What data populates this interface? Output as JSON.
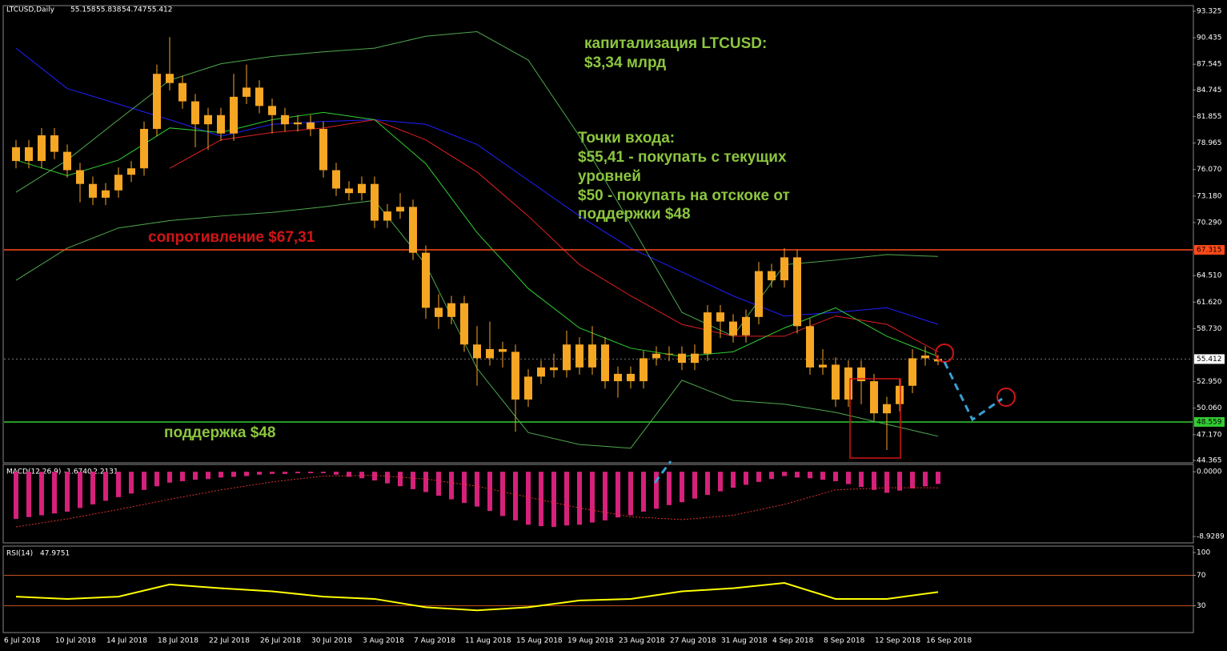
{
  "chart_data": [
    {
      "type": "candlestick",
      "symbol": "LTCUSD,Daily",
      "categories": [
        "6 Jul 2018",
        null,
        null,
        null,
        "10 Jul 2018",
        null,
        null,
        null,
        "14 Jul 2018",
        null,
        null,
        null,
        "18 Jul 2018",
        null,
        null,
        null,
        "22 Jul 2018",
        null,
        null,
        null,
        "26 Jul 2018",
        null,
        null,
        null,
        "30 Jul 2018",
        null,
        null,
        null,
        "3 Aug 2018",
        null,
        null,
        null,
        "7 Aug 2018",
        null,
        null,
        null,
        "11 Aug 2018",
        null,
        null,
        null,
        "15 Aug 2018",
        null,
        null,
        null,
        "19 Aug 2018",
        null,
        null,
        null,
        "23 Aug 2018",
        null,
        null,
        null,
        "27 Aug 2018",
        null,
        null,
        null,
        "31 Aug 2018",
        null,
        null,
        null,
        "4 Sep 2018",
        null,
        null,
        null,
        "8 Sep 2018",
        null,
        null,
        null,
        "12 Sep 2018",
        null,
        null,
        null,
        "16 Sep 2018"
      ],
      "open": [
        77,
        78.5,
        77,
        79.8,
        78,
        76,
        74.5,
        73,
        73.8,
        75.5,
        76.2,
        80.5,
        86.5,
        85.5,
        83.5,
        81,
        82,
        80,
        84,
        85,
        83,
        82,
        81,
        81.2,
        80.5,
        76,
        74,
        73.5,
        74.5,
        70.5,
        71.5,
        72,
        67,
        61,
        60,
        61.5,
        57,
        55.5,
        56.5,
        56.2,
        51,
        53.5,
        54.5,
        54.2,
        57,
        54.5,
        57,
        53,
        53.8,
        53,
        55.5,
        56,
        56,
        55,
        56,
        60.5,
        59.5,
        58,
        60,
        65,
        64,
        66.5,
        59,
        54.5,
        54.8,
        51,
        54.5,
        53,
        49.5,
        50.5,
        52.5,
        55.5,
        55.158
      ],
      "high": [
        79.3,
        79.3,
        80.6,
        80.6,
        78.8,
        76.8,
        75.3,
        74.6,
        76.3,
        77.0,
        81.3,
        87.5,
        90.5,
        86.3,
        84.3,
        82.8,
        82.8,
        86.5,
        87.5,
        85.8,
        83.8,
        82.8,
        82.0,
        82.0,
        81.3,
        76.8,
        74.8,
        75.3,
        75.3,
        72.3,
        73.5,
        72.8,
        67.8,
        62.5,
        62.3,
        62.3,
        59.0,
        59.5,
        57.3,
        57.0,
        54.3,
        55.3,
        56.0,
        58.5,
        57.8,
        59.0,
        57.8,
        54.6,
        54.6,
        56.3,
        56.8,
        56.8,
        56.8,
        57.0,
        61.3,
        61.3,
        60.3,
        60.8,
        66.0,
        65.8,
        67.5,
        67.3,
        59.8,
        56.5,
        55.6,
        55.3,
        55.3,
        53.8,
        51.3,
        53.3,
        56.5,
        56.8,
        55.838
      ],
      "low": [
        76.2,
        76.2,
        76.2,
        77.2,
        75.2,
        72.5,
        72.2,
        72.2,
        73.0,
        74.7,
        75.4,
        79.7,
        84.7,
        82.7,
        78.5,
        78.2,
        79.2,
        79.2,
        83.2,
        82.2,
        80.0,
        80.2,
        80.2,
        79.7,
        75.2,
        73.2,
        72.7,
        72.7,
        69.7,
        69.7,
        70.7,
        66.2,
        59.8,
        58.7,
        59.2,
        56.2,
        52.5,
        54.7,
        54.5,
        47.5,
        50.2,
        52.7,
        53.4,
        53.4,
        53.7,
        53.7,
        52.2,
        51.2,
        52.2,
        52.2,
        54.7,
        55.2,
        54.2,
        54.2,
        55.2,
        57.7,
        57.2,
        57.2,
        59.2,
        63.2,
        63.2,
        58.2,
        53.7,
        53.7,
        50.2,
        50.2,
        50.5,
        48.7,
        45.5,
        49.7,
        51.7,
        54.7,
        54.747
      ],
      "close": [
        78.5,
        77,
        79.8,
        78,
        76,
        74.5,
        73,
        73.8,
        75.5,
        76.2,
        80.5,
        86.5,
        85.5,
        83.5,
        81,
        82,
        80,
        84,
        85,
        83,
        82,
        81,
        81.2,
        80.5,
        76,
        74,
        73.5,
        74.5,
        70.5,
        71.5,
        72,
        67,
        61,
        60,
        61.5,
        57,
        55.5,
        56.5,
        56.2,
        51,
        53.5,
        54.5,
        54.2,
        57,
        54.5,
        57,
        53,
        53.8,
        53,
        55.5,
        56,
        56,
        55,
        56,
        60.5,
        59.5,
        58,
        60,
        65,
        64,
        66.5,
        59,
        54.5,
        54.8,
        51,
        54.5,
        53,
        49.5,
        50.5,
        52.5,
        55.5,
        55.8,
        55.412
      ],
      "color": "#f5a623",
      "ylim": [
        44.19,
        93.85
      ],
      "yticks": [
        93.325,
        90.435,
        87.545,
        84.745,
        81.855,
        78.965,
        {
          "value": 76.07,
          "label": "76.070"
        },
        {
          "value": 73.18,
          "label": "73.180"
        },
        {
          "value": 70.29,
          "label": "70.290"
        },
        {
          "value": 64.51,
          "label": "64.510"
        },
        {
          "value": 61.62,
          "label": "61.620"
        },
        {
          "value": 58.73,
          "label": "58.730"
        },
        {
          "value": 52.95,
          "label": "52.950"
        },
        {
          "value": 50.06,
          "label": "50.060"
        },
        {
          "value": 47.17,
          "label": "47.170"
        },
        44.365
      ],
      "hlines": [
        {
          "value": 67.315,
          "color": "#ff4a1a"
        },
        {
          "value": 48.559,
          "color": "#33cc33"
        }
      ],
      "overlays": [
        {
          "color": "#2020ff",
          "x": [
            "6 Jul 2018",
            "10 Jul 2018",
            "14 Jul 2018",
            "18 Jul 2018",
            "22 Jul 2018",
            "26 Jul 2018",
            "30 Jul 2018",
            "3 Aug 2018",
            "7 Aug 2018",
            "11 Aug 2018",
            "15 Aug 2018",
            "19 Aug 2018",
            "23 Aug 2018",
            "27 Aug 2018",
            "31 Aug 2018",
            "4 Sep 2018",
            "8 Sep 2018",
            "12 Sep 2018",
            "16 Sep 2018"
          ],
          "values": [
            89.3,
            84.9,
            83.2,
            81.5,
            79.7,
            81.0,
            81.3,
            81.5,
            81.0,
            78.8,
            74.9,
            71.0,
            67.5,
            64.9,
            62.3,
            60.1,
            60.5,
            61.0,
            59.2
          ]
        },
        {
          "color": "#e02020",
          "x": [
            "6 Jul 2018",
            "10 Jul 2018",
            "14 Jul 2018",
            "18 Jul 2018",
            "22 Jul 2018",
            "26 Jul 2018",
            "30 Jul 2018",
            "3 Aug 2018",
            "7 Aug 2018",
            "11 Aug 2018",
            "15 Aug 2018",
            "19 Aug 2018",
            "23 Aug 2018",
            "27 Aug 2018",
            "31 Aug 2018",
            "4 Sep 2018",
            "8 Sep 2018",
            "12 Sep 2018",
            "16 Sep 2018"
          ],
          "values": [
            null,
            null,
            null,
            76.2,
            79.3,
            80.1,
            80.6,
            81.5,
            79.3,
            75.8,
            71.0,
            65.7,
            62.3,
            59.2,
            57.9,
            57.9,
            60.1,
            59.2,
            56.2
          ]
        },
        {
          "color": "#30d030",
          "x": [
            "6 Jul 2018",
            "10 Jul 2018",
            "14 Jul 2018",
            "18 Jul 2018",
            "22 Jul 2018",
            "26 Jul 2018",
            "30 Jul 2018",
            "3 Aug 2018",
            "7 Aug 2018",
            "11 Aug 2018",
            "15 Aug 2018",
            "19 Aug 2018",
            "23 Aug 2018",
            "27 Aug 2018",
            "31 Aug 2018",
            "4 Sep 2018",
            "8 Sep 2018",
            "12 Sep 2018",
            "16 Sep 2018"
          ],
          "values": [
            77.1,
            75.4,
            77.1,
            80.6,
            80.1,
            81.5,
            82.3,
            81.5,
            76.7,
            69.2,
            63.1,
            58.8,
            56.6,
            55.7,
            56.2,
            58.8,
            61.0,
            57.9,
            55.7
          ]
        },
        {
          "color": "#4fa84f",
          "x": [
            "6 Jul 2018",
            "10 Jul 2018",
            "14 Jul 2018",
            "18 Jul 2018",
            "22 Jul 2018",
            "26 Jul 2018",
            "30 Jul 2018",
            "3 Aug 2018",
            "7 Aug 2018",
            "11 Aug 2018",
            "15 Aug 2018",
            "19 Aug 2018",
            "23 Aug 2018",
            "27 Aug 2018",
            "31 Aug 2018",
            "4 Sep 2018",
            "8 Sep 2018",
            "12 Sep 2018",
            "16 Sep 2018"
          ],
          "values": [
            73.6,
            77.1,
            81.5,
            85.8,
            87.6,
            88.4,
            88.9,
            89.3,
            90.6,
            91.1,
            88.0,
            79.7,
            70.1,
            60.5,
            57.9,
            65.7,
            66.2,
            66.8,
            66.6
          ]
        },
        {
          "color": "#4fa84f",
          "x": [
            "6 Jul 2018",
            "10 Jul 2018",
            "14 Jul 2018",
            "18 Jul 2018",
            "22 Jul 2018",
            "26 Jul 2018",
            "30 Jul 2018",
            "3 Aug 2018",
            "7 Aug 2018",
            "11 Aug 2018",
            "15 Aug 2018",
            "19 Aug 2018",
            "23 Aug 2018",
            "27 Aug 2018",
            "31 Aug 2018",
            "4 Sep 2018",
            "8 Sep 2018",
            "12 Sep 2018",
            "16 Sep 2018"
          ],
          "values": [
            64.0,
            67.5,
            69.7,
            70.5,
            71.0,
            71.4,
            72.0,
            72.7,
            65.7,
            54.4,
            47.4,
            46.1,
            45.7,
            53.1,
            50.9,
            50.5,
            49.6,
            48.3,
            47.0
          ]
        }
      ],
      "annotations": [
        "капитализация LTCUSD:",
        "$3,34 млрд",
        "Точки входа:",
        "$55,41 - покупать с текущих",
        "уровней",
        "$50 - покупать на отскоке от",
        "поддержки $48"
      ],
      "resistance_label": "сопротивление $67,31",
      "support_label": "поддержка $48"
    },
    {
      "type": "bar",
      "title": "MACD(12,26,9)",
      "readout": [
        "-1.6740",
        "-2.2131"
      ],
      "values": [
        -6.5,
        -6.25,
        -6.0,
        -5.75,
        -5.5,
        -5.0,
        -4.5,
        -4.0,
        -3.5,
        -3.0,
        -2.5,
        -2.0,
        -1.5,
        -1.3,
        -1.1,
        -1.0,
        -0.8,
        -0.7,
        -0.6,
        -0.4,
        -0.3,
        -0.3,
        -0.2,
        -0.2,
        -0.2,
        -0.4,
        -0.7,
        -0.9,
        -1.2,
        -1.6,
        -2.0,
        -2.4,
        -2.8,
        -3.3,
        -3.8,
        -4.3,
        -4.8,
        -5.4,
        -6.1,
        -6.7,
        -7.3,
        -7.5,
        -7.6,
        -7.4,
        -7.3,
        -7.0,
        -6.7,
        -6.3,
        -6.0,
        -5.5,
        -5.1,
        -4.6,
        -4.2,
        -3.7,
        -3.2,
        -2.7,
        -2.2,
        -1.8,
        -1.4,
        -1.0,
        -0.6,
        -0.8,
        -0.9,
        -1.1,
        -1.3,
        -1.7,
        -2.1,
        -2.5,
        -2.9,
        -2.6,
        -2.3,
        -2.0,
        -1.674
      ],
      "color": "#d6217a",
      "signal": {
        "color": "#e03030",
        "x": [
          "6 Jul 2018",
          "10 Jul 2018",
          "14 Jul 2018",
          "18 Jul 2018",
          "22 Jul 2018",
          "26 Jul 2018",
          "30 Jul 2018",
          "3 Aug 2018",
          "7 Aug 2018",
          "11 Aug 2018",
          "15 Aug 2018",
          "19 Aug 2018",
          "23 Aug 2018",
          "27 Aug 2018",
          "31 Aug 2018",
          "4 Sep 2018",
          "8 Sep 2018",
          "12 Sep 2018",
          "16 Sep 2018"
        ],
        "values": [
          -7.6,
          -6.5,
          -5.2,
          -3.8,
          -2.5,
          -1.4,
          -0.6,
          -0.5,
          -1.0,
          -2.0,
          -3.5,
          -5.0,
          -6.2,
          -6.6,
          -6.0,
          -4.5,
          -2.5,
          -2.2,
          -2.2131
        ]
      },
      "ylim": [
        -9.7,
        0.9
      ],
      "yticks": [
        {
          "value": 0,
          "label": "0.0000"
        },
        -8.9289
      ]
    },
    {
      "type": "line",
      "title": "RSI(14)",
      "x": [
        "6 Jul 2018",
        "10 Jul 2018",
        "14 Jul 2018",
        "18 Jul 2018",
        "22 Jul 2018",
        "26 Jul 2018",
        "30 Jul 2018",
        "3 Aug 2018",
        "7 Aug 2018",
        "11 Aug 2018",
        "15 Aug 2018",
        "19 Aug 2018",
        "23 Aug 2018",
        "27 Aug 2018",
        "31 Aug 2018",
        "4 Sep 2018",
        "8 Sep 2018",
        "12 Sep 2018",
        "16 Sep 2018"
      ],
      "values": [
        42,
        39,
        42,
        58,
        53,
        49,
        42,
        39,
        28,
        24,
        28,
        37,
        39,
        49,
        53,
        60,
        39,
        39,
        47.9751
      ],
      "color": "#ffff00",
      "ylim": [
        0,
        100
      ],
      "yticks": [
        100,
        70,
        30
      ],
      "levels": [
        70,
        30
      ],
      "level_color": "#c0501a"
    }
  ]
}
